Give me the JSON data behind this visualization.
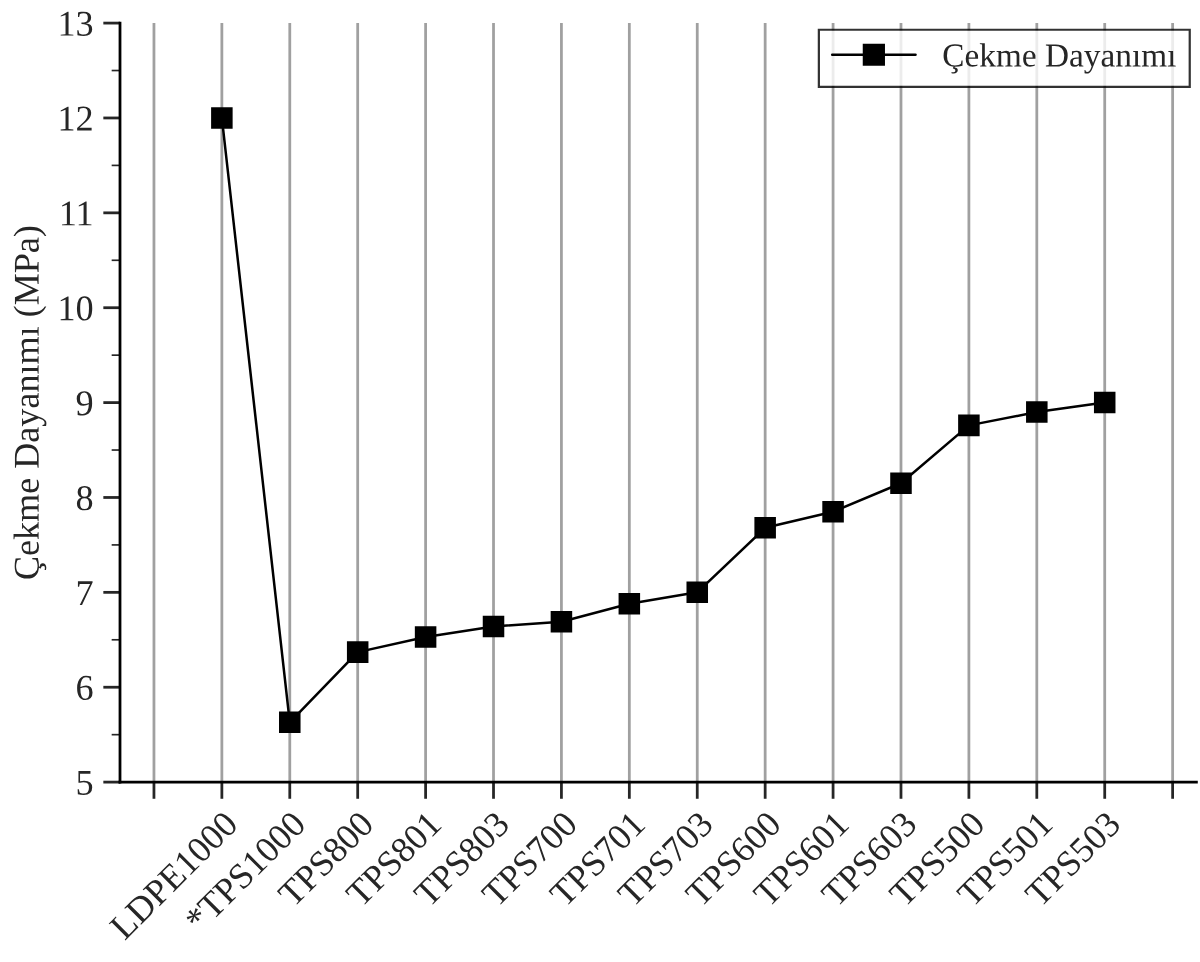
{
  "chart_data": {
    "type": "line",
    "ylabel": "Çekme Dayanımı (MPa)",
    "categories": [
      null,
      "LDPE1000",
      "*TPS1000",
      "TPS800",
      "TPS801",
      "TPS803",
      "TPS700",
      "TPS701",
      "TPS703",
      "TPS600",
      "TPS601",
      "TPS603",
      "TPS500",
      "TPS501",
      "TPS503",
      null
    ],
    "series": [
      {
        "name": "Çekme Dayanımı",
        "color": "#000000",
        "values": [
          null,
          12.0,
          5.63,
          6.37,
          6.53,
          6.64,
          6.69,
          6.88,
          7.0,
          7.68,
          7.85,
          8.15,
          8.76,
          8.9,
          9.0,
          null
        ]
      }
    ],
    "ylim": [
      5,
      13
    ],
    "yticks": [
      5,
      6,
      7,
      8,
      9,
      10,
      11,
      12,
      13
    ],
    "grid": "x",
    "legend": "top right",
    "marker": "square",
    "line_style": "solid"
  }
}
